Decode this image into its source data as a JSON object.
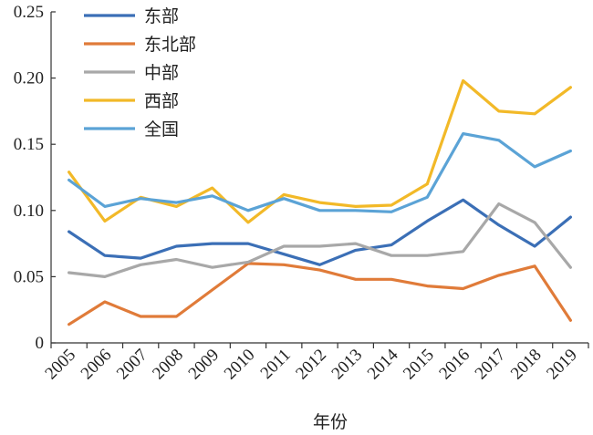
{
  "chart_data": {
    "type": "line",
    "xlabel": "年份",
    "ylabel": "",
    "ylim": [
      0,
      0.25
    ],
    "yticks": [
      "0",
      "0.05",
      "0.10",
      "0.15",
      "0.20",
      "0.25"
    ],
    "yticks_values": [
      0,
      0.05,
      0.1,
      0.15,
      0.2,
      0.25
    ],
    "x": [
      "2005",
      "2006",
      "2007",
      "2008",
      "2009",
      "2010",
      "2011",
      "2012",
      "2013",
      "2014",
      "2015",
      "2016",
      "2017",
      "2018",
      "2019"
    ],
    "grid": false,
    "legend_position": "top-left",
    "series": [
      {
        "name": "东部",
        "color": "#3b6fb6",
        "values": [
          0.084,
          0.066,
          0.064,
          0.073,
          0.075,
          0.075,
          0.067,
          0.059,
          0.07,
          0.074,
          0.092,
          0.108,
          0.089,
          0.073,
          0.095
        ]
      },
      {
        "name": "东北部",
        "color": "#e07b39",
        "values": [
          0.014,
          0.031,
          0.02,
          0.02,
          0.04,
          0.06,
          0.059,
          0.055,
          0.048,
          0.048,
          0.043,
          0.041,
          0.051,
          0.058,
          0.017
        ]
      },
      {
        "name": "中部",
        "color": "#a8a8a8",
        "values": [
          0.053,
          0.05,
          0.059,
          0.063,
          0.057,
          0.061,
          0.073,
          0.073,
          0.075,
          0.066,
          0.066,
          0.069,
          0.105,
          0.091,
          0.057
        ]
      },
      {
        "name": "西部",
        "color": "#f2b928",
        "values": [
          0.129,
          0.092,
          0.11,
          0.103,
          0.117,
          0.091,
          0.112,
          0.106,
          0.103,
          0.104,
          0.12,
          0.198,
          0.175,
          0.173,
          0.193
        ]
      },
      {
        "name": "全国",
        "color": "#5ba3d6",
        "values": [
          0.123,
          0.103,
          0.109,
          0.106,
          0.111,
          0.1,
          0.109,
          0.1,
          0.1,
          0.099,
          0.11,
          0.158,
          0.153,
          0.133,
          0.145
        ]
      }
    ]
  }
}
